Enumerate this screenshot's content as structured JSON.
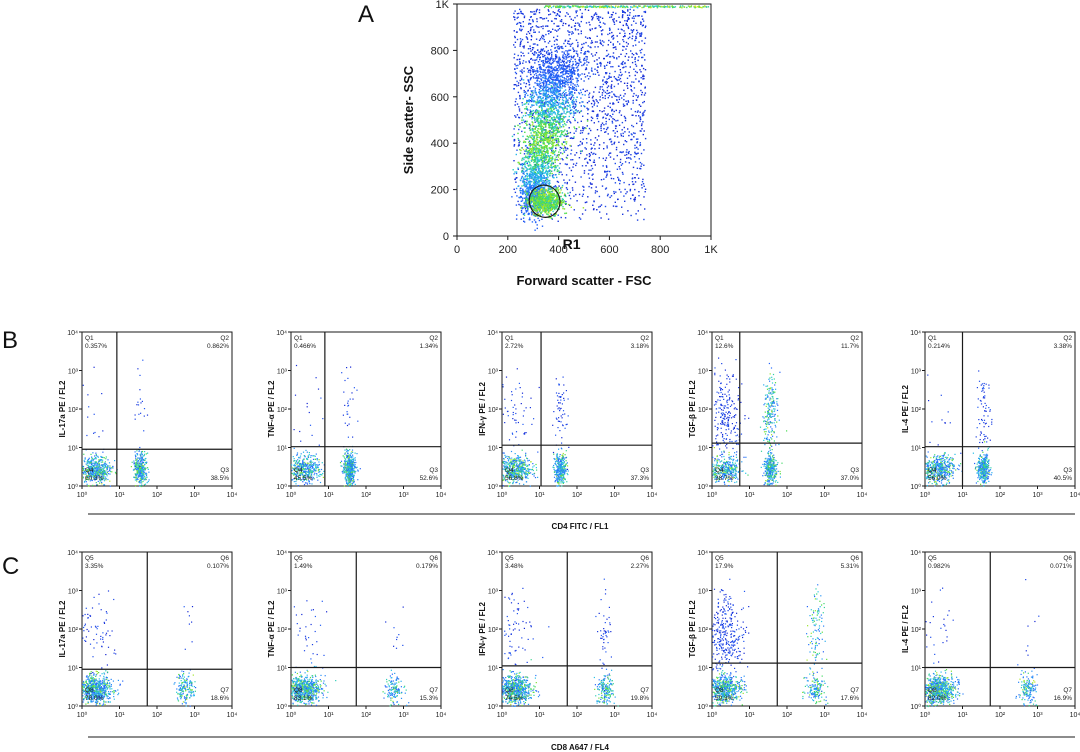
{
  "panels": {
    "A": "A",
    "B": "B",
    "C": "C"
  },
  "chart_data": [
    {
      "id": "A",
      "type": "scatter",
      "title": "",
      "xlabel": "Forward scatter - FSC",
      "ylabel": "Side scatter- SSC",
      "xlim": [
        0,
        1000
      ],
      "ylim": [
        0,
        1000
      ],
      "xticks": [
        "0",
        "200",
        "400",
        "600",
        "800",
        "1K"
      ],
      "yticks": [
        "0",
        "200",
        "400",
        "600",
        "800",
        "1K"
      ],
      "gate": {
        "name": "R1",
        "center": [
          345,
          150
        ],
        "radius": [
          60,
          70
        ]
      },
      "colors": [
        "#0000c8",
        "#2060ff",
        "#20c0ff",
        "#40e040",
        "#e8e800"
      ]
    },
    {
      "id": "B",
      "type": "scatter",
      "row_xlabel": "CD4 FITC / FL1",
      "scale": "log",
      "ticks": [
        "10⁰",
        "10¹",
        "10²",
        "10³",
        "10⁴"
      ],
      "plots": [
        {
          "ylabel": "IL-17a PE / FL2",
          "gate": [
            8.5,
            9
          ],
          "q": {
            "Q1": "0.357%",
            "Q2": "0.862%",
            "Q3": "38.5%",
            "Q4": "60.3%"
          }
        },
        {
          "ylabel": "TNF-α PE / FL2",
          "gate": [
            8,
            10.5
          ],
          "q": {
            "Q1": "0.466%",
            "Q2": "1.34%",
            "Q3": "52.6%",
            "Q4": "45.5%"
          }
        },
        {
          "ylabel": "IFN-γ PE / FL2",
          "gate": [
            11,
            11.5
          ],
          "q": {
            "Q1": "2.72%",
            "Q2": "3.18%",
            "Q3": "37.3%",
            "Q4": "56.8%"
          }
        },
        {
          "ylabel": "TGF-β PE / FL2",
          "gate": [
            5.5,
            13
          ],
          "q": {
            "Q1": "12.6%",
            "Q2": "11.7%",
            "Q3": "37.0%",
            "Q4": "38.7%"
          }
        },
        {
          "ylabel": "IL-4 PE / FL2",
          "gate": [
            10,
            10.5
          ],
          "q": {
            "Q1": "0.214%",
            "Q2": "3.38%",
            "Q3": "40.5%",
            "Q4": "56.0%"
          }
        }
      ]
    },
    {
      "id": "C",
      "type": "scatter",
      "row_xlabel": "CD8 A647 / FL4",
      "scale": "log",
      "ticks": [
        "10⁰",
        "10¹",
        "10²",
        "10³",
        "10⁴"
      ],
      "plots": [
        {
          "ylabel": "IL-17a PE / FL2",
          "gate": [
            55,
            9
          ],
          "q": {
            "Q1": "3.35%",
            "Q2": "0.107%",
            "Q3": "18.6%",
            "Q4": "78.0%"
          }
        },
        {
          "ylabel": "TNF-α PE / FL2",
          "gate": [
            55,
            10
          ],
          "q": {
            "Q1": "1.49%",
            "Q2": "0.179%",
            "Q3": "15.3%",
            "Q4": "83.1%"
          }
        },
        {
          "ylabel": "IFN-γ PE / FL2",
          "gate": [
            55,
            11
          ],
          "q": {
            "Q1": "3.48%",
            "Q2": "2.27%",
            "Q3": "19.8%",
            "Q4": "74.5%"
          }
        },
        {
          "ylabel": "TGF-β PE / FL2",
          "gate": [
            55,
            13
          ],
          "q": {
            "Q1": "17.9%",
            "Q2": "5.31%",
            "Q3": "17.6%",
            "Q4": "59.3%"
          }
        },
        {
          "ylabel": "IL-4 PE / FL2",
          "gate": [
            55,
            10
          ],
          "q": {
            "Q1": "0.982%",
            "Q2": "0.071%",
            "Q3": "16.9%",
            "Q4": "82.0%"
          }
        }
      ],
      "quadrant_names": [
        "Q5",
        "Q6",
        "Q7",
        "Q8"
      ]
    }
  ]
}
